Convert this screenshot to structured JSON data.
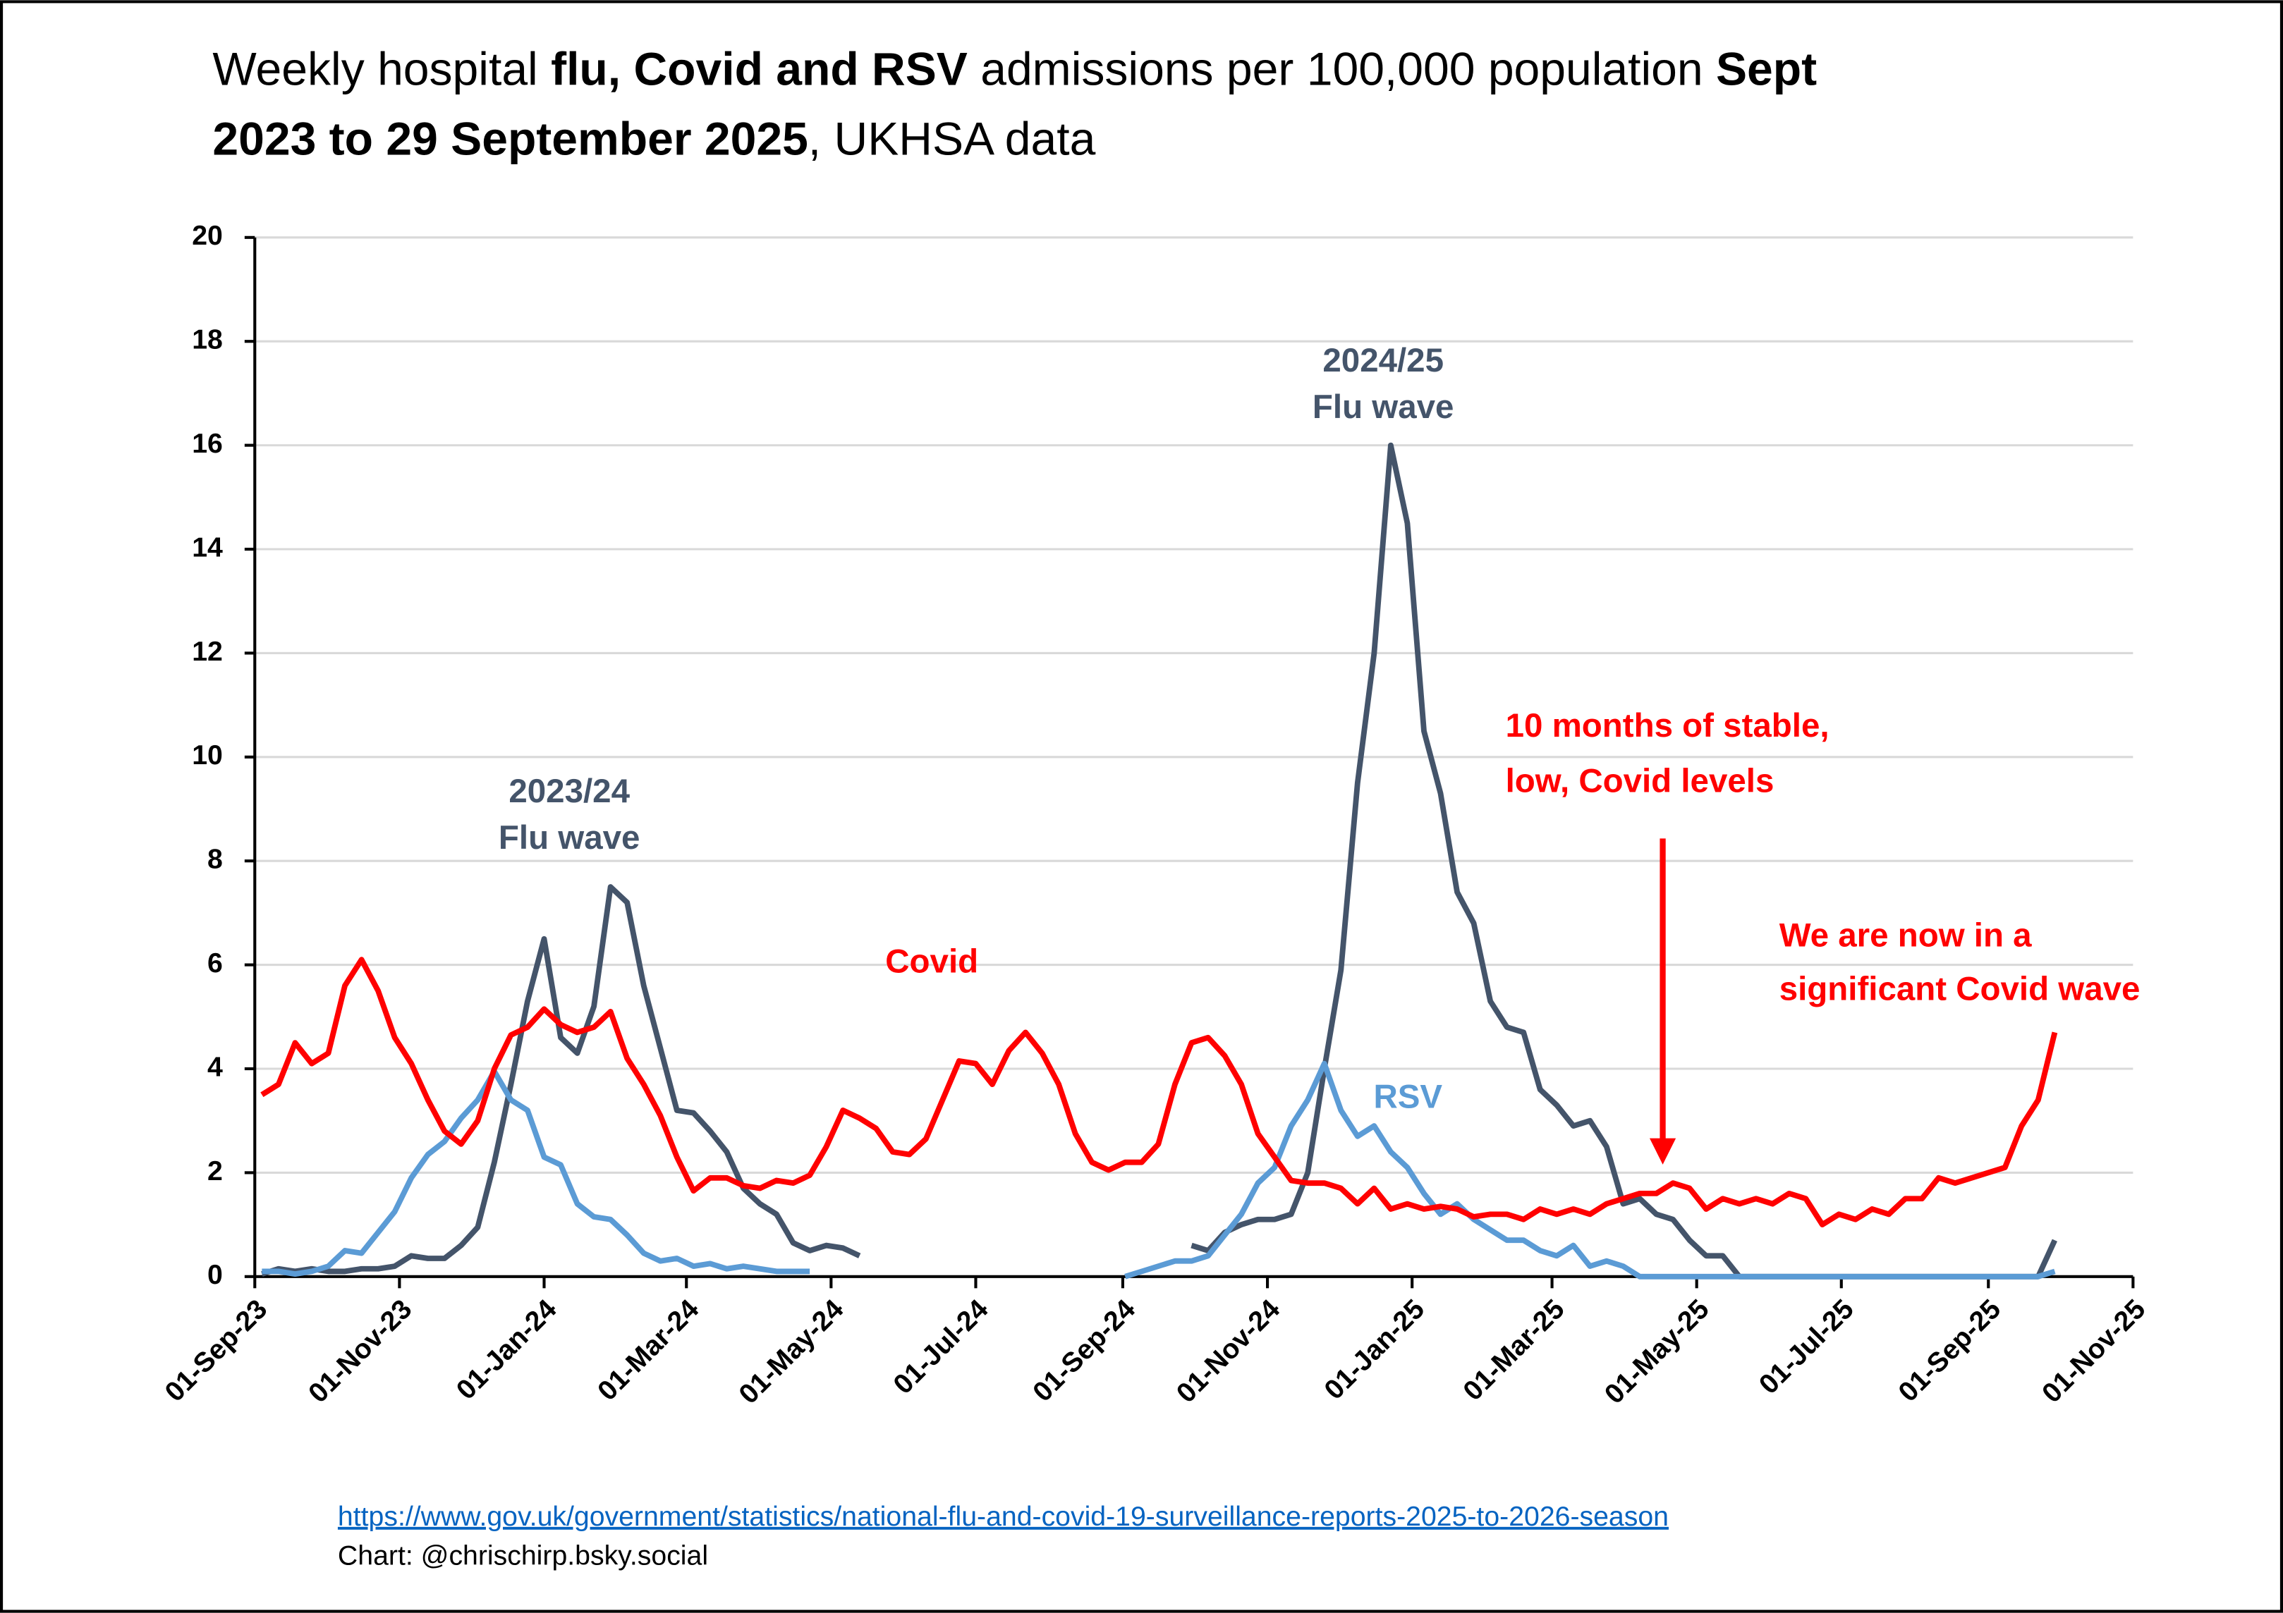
{
  "chart_data": {
    "type": "line",
    "title": [
      "Weekly hospital ",
      "flu, Covid and RSV",
      " admissions per 100,000 population ",
      "Sept",
      "2023 to 29 September 2025",
      ", UKHSA data"
    ],
    "x": [
      "2023-09-04",
      "2023-09-11",
      "2023-09-18",
      "2023-09-25",
      "2023-10-02",
      "2023-10-09",
      "2023-10-16",
      "2023-10-23",
      "2023-10-30",
      "2023-11-06",
      "2023-11-13",
      "2023-11-20",
      "2023-11-27",
      "2023-12-04",
      "2023-12-11",
      "2023-12-18",
      "2023-12-25",
      "2024-01-01",
      "2024-01-08",
      "2024-01-15",
      "2024-01-22",
      "2024-01-29",
      "2024-02-05",
      "2024-02-12",
      "2024-02-19",
      "2024-02-26",
      "2024-03-04",
      "2024-03-11",
      "2024-03-18",
      "2024-03-25",
      "2024-04-01",
      "2024-04-08",
      "2024-04-15",
      "2024-04-22",
      "2024-04-29",
      "2024-05-06",
      "2024-05-13",
      "2024-05-20",
      "2024-05-27",
      "2024-06-03",
      "2024-06-10",
      "2024-06-17",
      "2024-06-24",
      "2024-07-01",
      "2024-07-08",
      "2024-07-15",
      "2024-07-22",
      "2024-07-29",
      "2024-08-05",
      "2024-08-12",
      "2024-08-19",
      "2024-08-26",
      "2024-09-02",
      "2024-09-09",
      "2024-09-16",
      "2024-09-23",
      "2024-09-30",
      "2024-10-07",
      "2024-10-14",
      "2024-10-21",
      "2024-10-28",
      "2024-11-04",
      "2024-11-11",
      "2024-11-18",
      "2024-11-25",
      "2024-12-02",
      "2024-12-09",
      "2024-12-16",
      "2024-12-23",
      "2024-12-30",
      "2025-01-06",
      "2025-01-13",
      "2025-01-20",
      "2025-01-27",
      "2025-02-03",
      "2025-02-10",
      "2025-02-17",
      "2025-02-24",
      "2025-03-03",
      "2025-03-10",
      "2025-03-17",
      "2025-03-24",
      "2025-03-31",
      "2025-04-07",
      "2025-04-14",
      "2025-04-21",
      "2025-04-28",
      "2025-05-05",
      "2025-05-12",
      "2025-05-19",
      "2025-05-26",
      "2025-06-02",
      "2025-06-09",
      "2025-06-16",
      "2025-06-23",
      "2025-06-30",
      "2025-07-07",
      "2025-07-14",
      "2025-07-21",
      "2025-07-28",
      "2025-08-04",
      "2025-08-11",
      "2025-08-18",
      "2025-08-25",
      "2025-09-01",
      "2025-09-08",
      "2025-09-15",
      "2025-09-22",
      "2025-09-29"
    ],
    "series": [
      {
        "color": "#44546a",
        "values": [
          0.05,
          0.15,
          0.1,
          0.15,
          0.1,
          0.1,
          0.15,
          0.15,
          0.2,
          0.4,
          0.35,
          0.35,
          0.6,
          0.95,
          2.2,
          3.7,
          5.3,
          6.5,
          4.6,
          4.3,
          5.2,
          7.5,
          7.2,
          5.6,
          4.4,
          3.2,
          3.15,
          2.8,
          2.4,
          1.7,
          1.4,
          1.2,
          0.65,
          0.5,
          0.6,
          0.55,
          0.4,
          null,
          null,
          null,
          null,
          null,
          null,
          null,
          null,
          null,
          null,
          null,
          null,
          null,
          null,
          null,
          null,
          null,
          null,
          null,
          0.6,
          0.5,
          0.85,
          1.0,
          1.1,
          1.1,
          1.2,
          2.0,
          4.0,
          5.9,
          9.5,
          12.0,
          16.0,
          14.5,
          10.5,
          9.3,
          7.4,
          6.8,
          5.3,
          4.8,
          4.7,
          3.6,
          3.3,
          2.9,
          3.0,
          2.5,
          1.4,
          1.5,
          1.2,
          1.1,
          0.7,
          0.4,
          0.4,
          0,
          0,
          0,
          0,
          0,
          0,
          0,
          0,
          0,
          0,
          0,
          0,
          0,
          0,
          0,
          0,
          0,
          0,
          0,
          0.7
        ]
      },
      {
        "color": "#5b9bd5",
        "values": [
          0.1,
          0.1,
          0.05,
          0.1,
          0.2,
          0.5,
          0.45,
          0.85,
          1.25,
          1.9,
          2.35,
          2.6,
          3.05,
          3.4,
          3.95,
          3.4,
          3.2,
          2.3,
          2.15,
          1.4,
          1.15,
          1.1,
          0.8,
          0.45,
          0.3,
          0.35,
          0.2,
          0.25,
          0.15,
          0.2,
          0.15,
          0.1,
          0.1,
          0.1,
          null,
          null,
          null,
          null,
          null,
          null,
          null,
          null,
          null,
          null,
          null,
          null,
          null,
          null,
          null,
          null,
          null,
          null,
          0,
          0.1,
          0.2,
          0.3,
          0.3,
          0.4,
          0.8,
          1.2,
          1.8,
          2.1,
          2.9,
          3.4,
          4.1,
          3.2,
          2.7,
          2.9,
          2.4,
          2.1,
          1.6,
          1.2,
          1.4,
          1.1,
          0.9,
          0.7,
          0.7,
          0.5,
          0.4,
          0.6,
          0.2,
          0.3,
          0.2,
          0,
          0,
          0,
          0,
          0,
          0,
          0,
          0,
          0,
          0,
          0,
          0,
          0,
          0,
          0,
          0,
          0,
          0,
          0,
          0,
          0,
          0,
          0,
          0,
          0,
          0.1
        ]
      },
      {
        "color": "#ff0000",
        "values": [
          3.5,
          3.7,
          4.5,
          4.1,
          4.3,
          5.6,
          6.1,
          5.5,
          4.6,
          4.1,
          3.4,
          2.8,
          2.55,
          3.0,
          4.0,
          4.65,
          4.8,
          5.15,
          4.85,
          4.7,
          4.8,
          5.1,
          4.2,
          3.7,
          3.1,
          2.3,
          1.65,
          1.9,
          1.9,
          1.75,
          1.7,
          1.85,
          1.8,
          1.95,
          2.5,
          3.2,
          3.05,
          2.85,
          2.4,
          2.35,
          2.65,
          3.4,
          4.15,
          4.1,
          3.7,
          4.35,
          4.7,
          4.3,
          3.7,
          2.75,
          2.2,
          2.05,
          2.2,
          2.2,
          2.55,
          3.7,
          4.5,
          4.6,
          4.25,
          3.7,
          2.75,
          2.3,
          1.85,
          1.8,
          1.8,
          1.7,
          1.4,
          1.7,
          1.3,
          1.4,
          1.3,
          1.35,
          1.3,
          1.15,
          1.2,
          1.2,
          1.1,
          1.3,
          1.2,
          1.3,
          1.2,
          1.4,
          1.5,
          1.6,
          1.6,
          1.8,
          1.7,
          1.3,
          1.5,
          1.4,
          1.5,
          1.4,
          1.6,
          1.5,
          1.0,
          1.2,
          1.1,
          1.3,
          1.2,
          1.5,
          1.5,
          1.9,
          1.8,
          1.9,
          2.0,
          2.1,
          2.9,
          3.4,
          4.7
        ]
      }
    ],
    "xlim": [
      "2023-09-01",
      "2025-11-01"
    ],
    "xticks": [
      {
        "value": "2023-09-01",
        "label": "01-Sep-23"
      },
      {
        "value": "2023-11-01",
        "label": "01-Nov-23"
      },
      {
        "value": "2024-01-01",
        "label": "01-Jan-24"
      },
      {
        "value": "2024-03-01",
        "label": "01-Mar-24"
      },
      {
        "value": "2024-05-01",
        "label": "01-May-24"
      },
      {
        "value": "2024-07-01",
        "label": "01-Jul-24"
      },
      {
        "value": "2024-09-01",
        "label": "01-Sep-24"
      },
      {
        "value": "2024-11-01",
        "label": "01-Nov-24"
      },
      {
        "value": "2025-01-01",
        "label": "01-Jan-25"
      },
      {
        "value": "2025-03-01",
        "label": "01-Mar-25"
      },
      {
        "value": "2025-05-01",
        "label": "01-May-25"
      },
      {
        "value": "2025-07-01",
        "label": "01-Jul-25"
      },
      {
        "value": "2025-09-01",
        "label": "01-Sep-25"
      },
      {
        "value": "2025-11-01",
        "label": "01-Nov-25"
      }
    ],
    "ylim": [
      0,
      20
    ],
    "yticks": [
      0,
      2,
      4,
      6,
      8,
      10,
      12,
      14,
      16,
      18,
      20
    ],
    "grid": true,
    "annotations": [
      {
        "lines": [
          "2023/24",
          "Flu wave"
        ],
        "color": "#44546a"
      },
      {
        "lines": [
          "2024/25",
          "Flu wave"
        ],
        "color": "#44546a"
      },
      {
        "lines": [
          "Covid"
        ],
        "color": "#ff0000"
      },
      {
        "lines": [
          "RSV"
        ],
        "color": "#5b9bd5"
      },
      {
        "lines": [
          "10 months of stable,",
          "low, Covid levels"
        ],
        "color": "#ff0000"
      },
      {
        "lines": [
          "We are now in a",
          "significant Covid wave"
        ],
        "color": "#ff0000"
      }
    ],
    "source": "https://www.gov.uk/government/statistics/national-flu-and-covid-19-surveillance-reports-2025-to-2026-season",
    "credit": "Chart: @chrischirp.bsky.social"
  }
}
